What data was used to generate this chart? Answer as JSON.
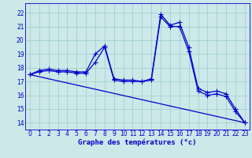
{
  "xlabel": "Graphe des températures (°c)",
  "bg_color": "#cce8e8",
  "grid_color": "#99cccc",
  "line_color": "#0000cc",
  "marker": "+",
  "marker_size": 4,
  "marker_lw": 0.8,
  "line_width": 0.9,
  "xlim": [
    -0.5,
    23.5
  ],
  "ylim": [
    13.5,
    22.7
  ],
  "yticks": [
    14,
    15,
    16,
    17,
    18,
    19,
    20,
    21,
    22
  ],
  "xticks": [
    0,
    1,
    2,
    3,
    4,
    5,
    6,
    7,
    8,
    9,
    10,
    11,
    12,
    13,
    14,
    15,
    16,
    17,
    18,
    19,
    20,
    21,
    22,
    23
  ],
  "series1_x": [
    0,
    1,
    2,
    3,
    4,
    5,
    6,
    7,
    8,
    9,
    10,
    11,
    12,
    13,
    14,
    15,
    16,
    17,
    18,
    19,
    20,
    21,
    22,
    23
  ],
  "series1_y": [
    17.5,
    17.8,
    17.9,
    17.8,
    17.8,
    17.7,
    17.7,
    19.0,
    19.6,
    17.2,
    17.1,
    17.1,
    17.0,
    17.2,
    21.9,
    21.1,
    21.3,
    19.5,
    16.5,
    16.2,
    16.3,
    16.1,
    15.0,
    14.0
  ],
  "series2_x": [
    0,
    23
  ],
  "series2_y": [
    17.5,
    14.0
  ],
  "series3_x": [
    0,
    1,
    2,
    3,
    4,
    5,
    6,
    7,
    8,
    9,
    10,
    11,
    12,
    13,
    14,
    15,
    16,
    17,
    18,
    19,
    20,
    21,
    22,
    23
  ],
  "series3_y": [
    17.5,
    17.7,
    17.8,
    17.7,
    17.7,
    17.6,
    17.6,
    18.4,
    19.5,
    17.1,
    17.0,
    17.0,
    17.0,
    17.1,
    21.7,
    21.0,
    21.0,
    19.2,
    16.3,
    16.0,
    16.1,
    15.9,
    14.8,
    14.0
  ],
  "tick_fontsize": 5.5,
  "xlabel_fontsize": 6.5
}
